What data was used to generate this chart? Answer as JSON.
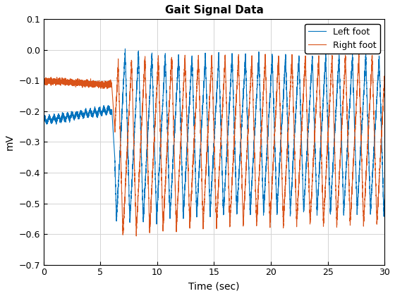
{
  "title": "Gait Signal Data",
  "xlabel": "Time (sec)",
  "ylabel": "mV",
  "xlim": [
    0,
    30
  ],
  "ylim": [
    -0.7,
    0.1
  ],
  "left_foot_color": "#0072BD",
  "right_foot_color": "#D95319",
  "left_foot_label": "Left foot",
  "right_foot_label": "Right foot",
  "line_width": 0.8,
  "background_color": "#FFFFFF",
  "grid_color": "#D3D3D3",
  "title_fontsize": 11,
  "label_fontsize": 10,
  "tick_fontsize": 9,
  "legend_fontsize": 9,
  "xticks": [
    0,
    5,
    10,
    15,
    20,
    25,
    30
  ],
  "yticks": [
    -0.7,
    -0.6,
    -0.5,
    -0.4,
    -0.3,
    -0.2,
    -0.1,
    0.0,
    0.1
  ],
  "n_samples": 9000
}
